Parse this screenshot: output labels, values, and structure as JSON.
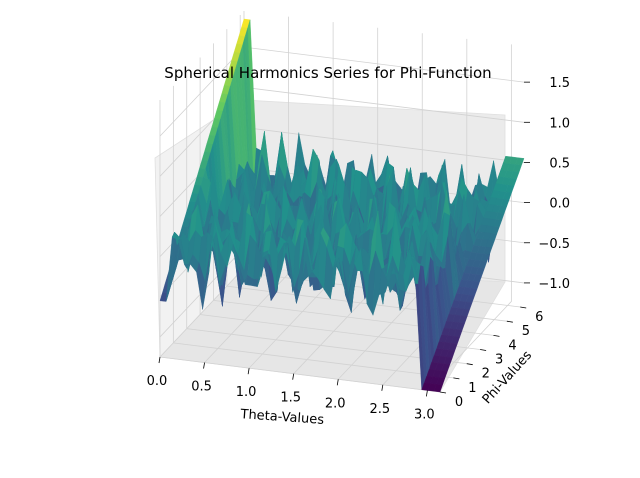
{
  "chart_data": {
    "type": "surface3d",
    "title": "Spherical Harmonics Series for Phi-Function",
    "xlabel": "Theta-Values",
    "ylabel": "Phi-Values",
    "zlabel": "",
    "xlim": [
      0,
      3.14159
    ],
    "ylim": [
      0,
      6.28318
    ],
    "zlim": [
      -1.25,
      1.95
    ],
    "x_ticks": [
      0.0,
      0.5,
      1.0,
      1.5,
      2.0,
      2.5,
      3.0
    ],
    "x_tick_labels": [
      "0.0",
      "0.5",
      "1.0",
      "1.5",
      "2.0",
      "2.5",
      "3.0"
    ],
    "y_ticks": [
      0,
      1,
      2,
      3,
      4,
      5,
      6
    ],
    "y_tick_labels": [
      "0",
      "1",
      "2",
      "3",
      "4",
      "5",
      "6"
    ],
    "z_ticks": [
      -1.0,
      -0.5,
      0.0,
      0.5,
      1.0,
      1.5
    ],
    "z_tick_labels": [
      "−1.0",
      "−0.5",
      "0.0",
      "0.5",
      "1.0",
      "1.5"
    ],
    "colormap": "viridis",
    "colormap_stops": [
      "#440154",
      "#3b528b",
      "#21918c",
      "#5ec962",
      "#fde725"
    ],
    "grid": true,
    "surface": {
      "edge_theta_0": {
        "phi": [
          0,
          6.28318
        ],
        "z": [
          -0.55,
          1.85
        ]
      },
      "edge_theta_pi": {
        "phi": [
          0,
          6.28318
        ],
        "z": [
          -1.25,
          0.55
        ]
      },
      "interior_z_range": [
        -1.2,
        1.1
      ]
    }
  }
}
